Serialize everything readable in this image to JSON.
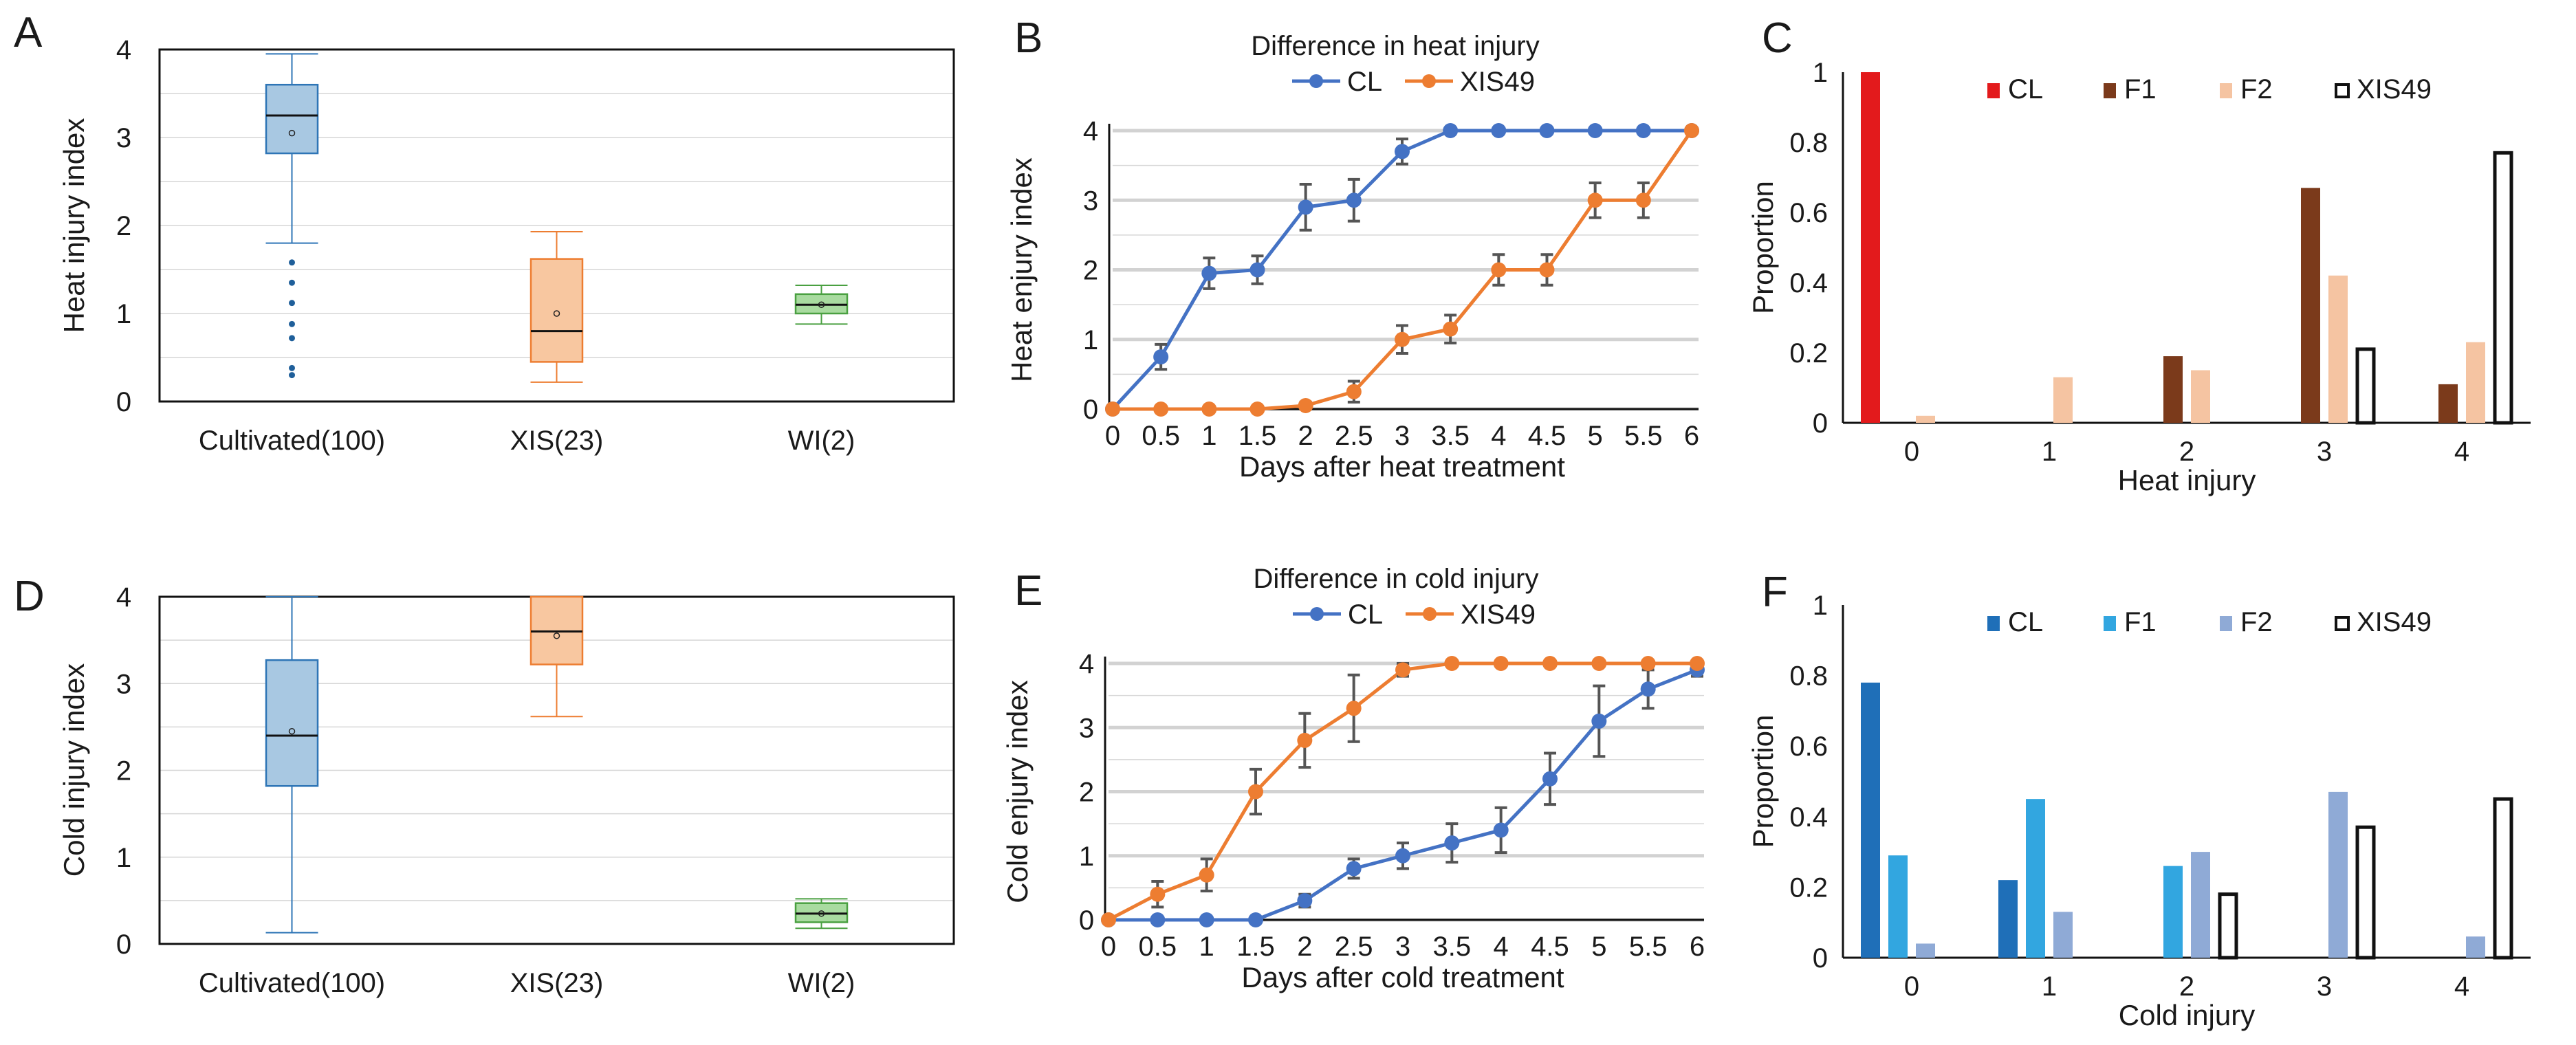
{
  "chart_data": [
    {
      "id": "A",
      "panel_label": "A",
      "type": "box",
      "title": "",
      "xlabel": "",
      "ylabel": "Heat  injury index",
      "ylim": [
        0,
        4
      ],
      "yticks": [
        "0",
        "1",
        "2",
        "3",
        "4"
      ],
      "grid": true,
      "categories": [
        "Cultivated(100)",
        "XIS(23)",
        "WI(2)"
      ],
      "colors": {
        "Cultivated(100)": "#a8c8e2",
        "XIS(23)": "#f8c7a0",
        "WI(2)": "#a9dba0"
      },
      "edge_colors": {
        "Cultivated(100)": "#2e75b6",
        "XIS(23)": "#ed7d31",
        "WI(2)": "#4aa041"
      },
      "boxes": [
        {
          "name": "Cultivated(100)",
          "whisker_low": 1.8,
          "q1": 2.82,
          "median": 3.25,
          "q3": 3.6,
          "whisker_high": 3.95,
          "mean": 3.05,
          "outliers": [
            1.58,
            1.35,
            1.12,
            0.88,
            0.72,
            0.38,
            0.3
          ]
        },
        {
          "name": "XIS(23)",
          "whisker_low": 0.22,
          "q1": 0.45,
          "median": 0.8,
          "q3": 1.62,
          "whisker_high": 1.93,
          "mean": 1.0,
          "outliers": []
        },
        {
          "name": "WI(2)",
          "whisker_low": 0.88,
          "q1": 1.0,
          "median": 1.1,
          "q3": 1.22,
          "whisker_high": 1.32,
          "mean": 1.1,
          "outliers": []
        }
      ]
    },
    {
      "id": "B",
      "panel_label": "B",
      "type": "line",
      "title": "Difference in heat injury",
      "xlabel": "Days after heat treatment",
      "ylabel": "Heat enjury index",
      "x": [
        0,
        0.5,
        1,
        1.5,
        2,
        2.5,
        3,
        3.5,
        4,
        4.5,
        5,
        5.5,
        6
      ],
      "xticks": [
        "0",
        "0.5",
        "1",
        "1.5",
        "2",
        "2.5",
        "3",
        "3.5",
        "4",
        "4.5",
        "5",
        "5.5",
        "6"
      ],
      "ylim": [
        0,
        4
      ],
      "yticks": [
        "0",
        "1",
        "2",
        "3",
        "4"
      ],
      "grid": true,
      "legend_position": "top",
      "series": [
        {
          "name": "CL",
          "color": "#4472c4",
          "values": [
            0,
            0.75,
            1.95,
            2.0,
            2.9,
            3.0,
            3.7,
            4.0,
            4.0,
            4.0,
            4.0,
            4.0,
            4.0
          ],
          "errors": [
            0,
            0.18,
            0.22,
            0.2,
            0.33,
            0.3,
            0.18,
            0,
            0,
            0,
            0,
            0,
            0
          ]
        },
        {
          "name": "XIS49",
          "color": "#ed7d31",
          "values": [
            0,
            0,
            0,
            0,
            0.05,
            0.25,
            1.0,
            1.15,
            2.0,
            2.0,
            3.0,
            3.0,
            4.0
          ],
          "errors": [
            0,
            0,
            0,
            0,
            0.05,
            0.15,
            0.2,
            0.2,
            0.22,
            0.22,
            0.25,
            0.25,
            0
          ]
        }
      ]
    },
    {
      "id": "C",
      "panel_label": "C",
      "type": "bar",
      "title": "",
      "xlabel": "Heat injury",
      "ylabel": "Proportion",
      "categories": [
        "0",
        "1",
        "2",
        "3",
        "4"
      ],
      "ylim": [
        0,
        1
      ],
      "yticks": [
        "0",
        "0.2",
        "0.4",
        "0.6",
        "0.8",
        "1"
      ],
      "grid": false,
      "legend_position": "top",
      "series": [
        {
          "name": "CL",
          "color": "#e31a1c",
          "outline": false,
          "values": [
            1.0,
            0,
            0,
            0,
            0
          ]
        },
        {
          "name": "F1",
          "color": "#7b3a1b",
          "outline": false,
          "values": [
            0,
            0,
            0.19,
            0.67,
            0.11
          ]
        },
        {
          "name": "F2",
          "color": "#f5c4a2",
          "outline": false,
          "values": [
            0.02,
            0.13,
            0.15,
            0.42,
            0.23
          ]
        },
        {
          "name": "XIS49",
          "color": "#111111",
          "outline": true,
          "values": [
            0,
            0,
            0,
            0.21,
            0.77
          ]
        }
      ]
    },
    {
      "id": "D",
      "panel_label": "D",
      "type": "box",
      "title": "",
      "xlabel": "",
      "ylabel": "Cold injury index",
      "ylim": [
        0,
        4
      ],
      "yticks": [
        "0",
        "1",
        "2",
        "3",
        "4"
      ],
      "grid": true,
      "categories": [
        "Cultivated(100)",
        "XIS(23)",
        "WI(2)"
      ],
      "colors": {
        "Cultivated(100)": "#a8c8e2",
        "XIS(23)": "#f8c7a0",
        "WI(2)": "#a9dba0"
      },
      "edge_colors": {
        "Cultivated(100)": "#2e75b6",
        "XIS(23)": "#ed7d31",
        "WI(2)": "#4aa041"
      },
      "boxes": [
        {
          "name": "Cultivated(100)",
          "whisker_low": 0.13,
          "q1": 1.82,
          "median": 2.4,
          "q3": 3.27,
          "whisker_high": 4.0,
          "mean": 2.45,
          "outliers": []
        },
        {
          "name": "XIS(23)",
          "whisker_low": 2.62,
          "q1": 3.22,
          "median": 3.6,
          "q3": 4.0,
          "whisker_high": 4.0,
          "mean": 3.55,
          "outliers": []
        },
        {
          "name": "WI(2)",
          "whisker_low": 0.18,
          "q1": 0.25,
          "median": 0.35,
          "q3": 0.47,
          "whisker_high": 0.52,
          "mean": 0.35,
          "outliers": []
        }
      ]
    },
    {
      "id": "E",
      "panel_label": "E",
      "type": "line",
      "title": "Difference in cold injury",
      "xlabel": "Days after cold treatment",
      "ylabel": "Cold enjury index",
      "x": [
        0,
        0.5,
        1,
        1.5,
        2,
        2.5,
        3,
        3.5,
        4,
        4.5,
        5,
        5.5,
        6
      ],
      "xticks": [
        "0",
        "0.5",
        "1",
        "1.5",
        "2",
        "2.5",
        "3",
        "3.5",
        "4",
        "4.5",
        "5",
        "5.5",
        "6"
      ],
      "ylim": [
        0,
        4
      ],
      "yticks": [
        "0",
        "1",
        "2",
        "3",
        "4"
      ],
      "grid": true,
      "legend_position": "top",
      "series": [
        {
          "name": "CL",
          "color": "#4472c4",
          "values": [
            0,
            0,
            0,
            0,
            0.3,
            0.8,
            1.0,
            1.2,
            1.4,
            2.2,
            3.1,
            3.6,
            3.9
          ],
          "errors": [
            0,
            0,
            0,
            0,
            0.1,
            0.15,
            0.2,
            0.3,
            0.35,
            0.4,
            0.55,
            0.3,
            0.1
          ]
        },
        {
          "name": "XIS49",
          "color": "#ed7d31",
          "values": [
            0,
            0.4,
            0.7,
            2.0,
            2.8,
            3.3,
            3.9,
            4.0,
            4.0,
            4.0,
            4.0,
            4.0,
            4.0
          ],
          "errors": [
            0,
            0.2,
            0.25,
            0.35,
            0.42,
            0.52,
            0.1,
            0,
            0,
            0,
            0,
            0,
            0
          ]
        }
      ]
    },
    {
      "id": "F",
      "panel_label": "F",
      "type": "bar",
      "title": "",
      "xlabel": "Cold injury",
      "ylabel": "Proportion",
      "categories": [
        "0",
        "1",
        "2",
        "3",
        "4"
      ],
      "ylim": [
        0,
        1
      ],
      "yticks": [
        "0",
        "0.2",
        "0.4",
        "0.6",
        "0.8",
        "1"
      ],
      "grid": false,
      "legend_position": "top",
      "series": [
        {
          "name": "CL",
          "color": "#1f6fb8",
          "outline": false,
          "values": [
            0.78,
            0.22,
            0,
            0,
            0
          ]
        },
        {
          "name": "F1",
          "color": "#32a6e0",
          "outline": false,
          "values": [
            0.29,
            0.45,
            0.26,
            0,
            0
          ]
        },
        {
          "name": "F2",
          "color": "#8faad6",
          "outline": false,
          "values": [
            0.04,
            0.13,
            0.3,
            0.47,
            0.06
          ]
        },
        {
          "name": "XIS49",
          "color": "#111111",
          "outline": true,
          "values": [
            0,
            0,
            0.18,
            0.37,
            0.45
          ]
        }
      ]
    }
  ]
}
